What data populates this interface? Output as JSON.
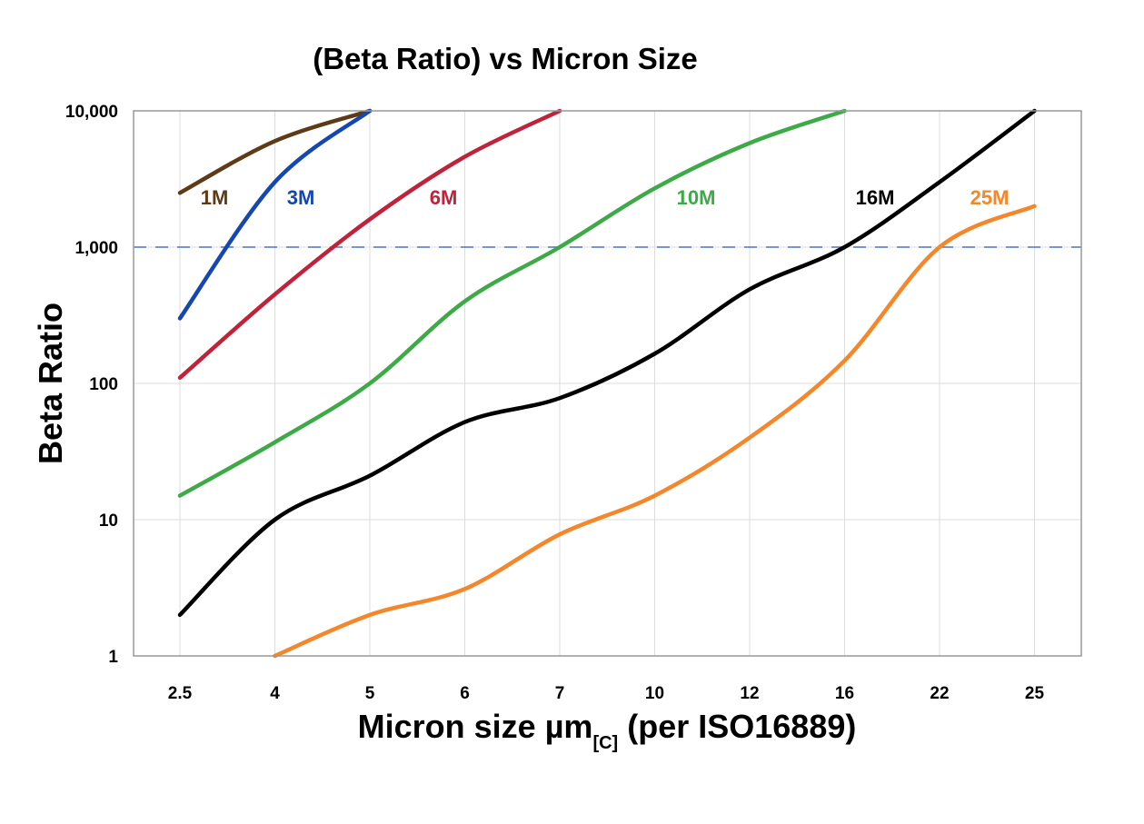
{
  "chart_data": {
    "type": "line",
    "title": "(Beta Ratio) vs Micron Size",
    "xlabel": {
      "main": "Micron size µm",
      "subscript": "[C]",
      "suffix": " (per ISO16889)"
    },
    "ylabel": "Beta Ratio",
    "yscale": "log",
    "ylim": [
      1,
      10000
    ],
    "yticks": [
      {
        "value": 1,
        "label": "1"
      },
      {
        "value": 10,
        "label": "10"
      },
      {
        "value": 100,
        "label": "100"
      },
      {
        "value": 1000,
        "label": "1,000"
      },
      {
        "value": 10000,
        "label": "10,000"
      }
    ],
    "categories": [
      "2.5",
      "4",
      "5",
      "6",
      "7",
      "10",
      "12",
      "16",
      "22",
      "25"
    ],
    "grid": true,
    "reference_line": {
      "value": 1000,
      "style": "dashed",
      "color": "#4a72c0"
    },
    "series": [
      {
        "name": "1M",
        "color": "#5e3a17",
        "values": [
          2500,
          6000,
          10000,
          null,
          null,
          null,
          null,
          null,
          null,
          null
        ]
      },
      {
        "name": "3M",
        "color": "#1448b0",
        "values": [
          300,
          3000,
          10000,
          null,
          null,
          null,
          null,
          null,
          null,
          null
        ]
      },
      {
        "name": "6M",
        "color": "#c0223a",
        "values": [
          110,
          450,
          1600,
          4600,
          10000,
          null,
          null,
          null,
          null,
          null
        ]
      },
      {
        "name": "10M",
        "color": "#3daa47",
        "values": [
          15,
          37,
          100,
          400,
          1000,
          2700,
          5800,
          10000,
          null,
          null
        ]
      },
      {
        "name": "16M",
        "color": "#000000",
        "values": [
          2,
          10,
          21,
          52,
          78,
          165,
          490,
          1000,
          3000,
          10000
        ]
      },
      {
        "name": "25M",
        "color": "#f5862a",
        "values": [
          null,
          1,
          2,
          3.1,
          7.8,
          15,
          40,
          147,
          1000,
          2000
        ]
      }
    ]
  }
}
